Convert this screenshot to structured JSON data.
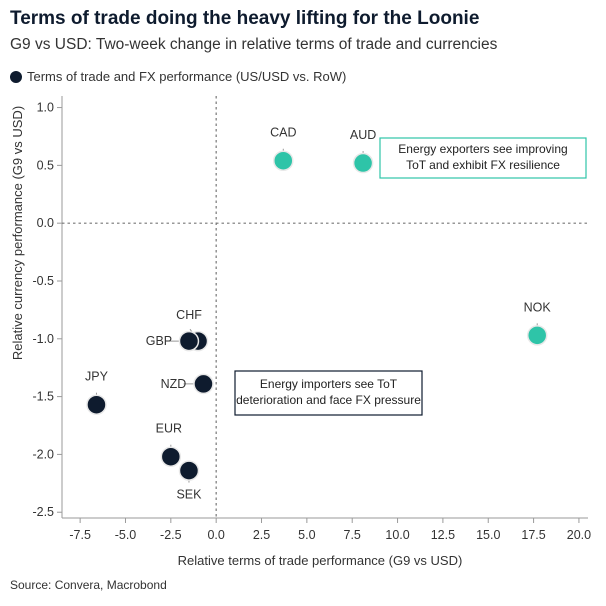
{
  "header": {
    "title": "Terms of trade doing the heavy lifting for the Loonie",
    "subtitle": "G9 vs USD: Two-week change in relative terms of trade and currencies"
  },
  "legend": {
    "label": "Terms of trade and FX performance (US/USD vs. RoW)"
  },
  "source": "Source: Convera, Macrobond",
  "chart_data": {
    "type": "scatter",
    "xlabel": "Relative terms of trade performance (G9 vs USD)",
    "ylabel": "Relative currency performance (G9 vs USD)",
    "xlim": [
      -8.5,
      20.5
    ],
    "ylim": [
      -2.55,
      1.1
    ],
    "x_ticks": [
      "-7.5",
      "-5.0",
      "-2.5",
      "0.0",
      "2.5",
      "5.0",
      "7.5",
      "10.0",
      "12.5",
      "15.0",
      "17.5",
      "20.0"
    ],
    "y_ticks": [
      "1.0",
      "0.5",
      "0.0",
      "-0.5",
      "-1.0",
      "-1.5",
      "-2.0",
      "-2.5"
    ],
    "grid": false,
    "zero_lines": "dashed",
    "colors": {
      "exporter": "#2ec4a8",
      "importer": "#0e1b2e"
    },
    "points": [
      {
        "label": "CAD",
        "x": 3.7,
        "y": 0.54,
        "group": "exporter"
      },
      {
        "label": "AUD",
        "x": 8.1,
        "y": 0.52,
        "group": "exporter"
      },
      {
        "label": "NOK",
        "x": 17.7,
        "y": -0.97,
        "group": "exporter"
      },
      {
        "label": "CHF",
        "x": -1.0,
        "y": -1.02,
        "group": "importer"
      },
      {
        "label": "GBP",
        "x": -1.5,
        "y": -1.02,
        "group": "importer"
      },
      {
        "label": "NZD",
        "x": -0.7,
        "y": -1.39,
        "group": "importer"
      },
      {
        "label": "JPY",
        "x": -6.6,
        "y": -1.57,
        "group": "importer"
      },
      {
        "label": "EUR",
        "x": -2.5,
        "y": -2.02,
        "group": "importer"
      },
      {
        "label": "SEK",
        "x": -1.5,
        "y": -2.14,
        "group": "importer"
      }
    ],
    "annotations": [
      {
        "text": [
          "Energy exporters see improving",
          "ToT and exhibit FX resilience"
        ],
        "group": "exporter"
      },
      {
        "text": [
          "Energy importers see ToT",
          "deterioration and face FX pressure"
        ],
        "group": "importer"
      }
    ]
  }
}
